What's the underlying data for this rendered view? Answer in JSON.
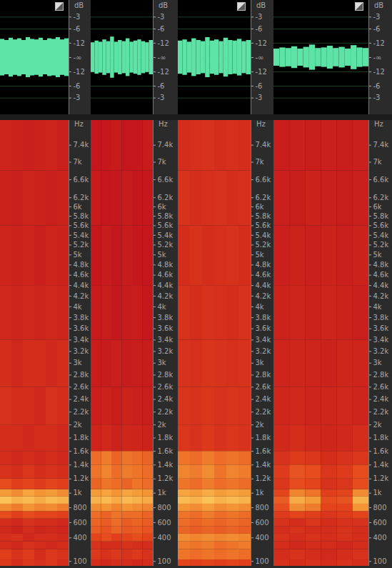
{
  "chart_data": {
    "type": "spectrogram",
    "tick_labels": "y",
    "zlim": [
      0,
      1
    ],
    "waveform_axis": {
      "ylabel": "dB",
      "ylim": [
        -1,
        1
      ],
      "grid": true,
      "color": "#5de3a6",
      "yticks": [
        {
          "value": 0.708,
          "label": "-3"
        },
        {
          "value": 0.5,
          "label": "-6"
        },
        {
          "value": 0.251,
          "label": "-12"
        },
        {
          "value": 0,
          "label": "-∞"
        },
        {
          "value": -0.251,
          "label": "-12"
        },
        {
          "value": -0.5,
          "label": "-6"
        },
        {
          "value": -0.708,
          "label": "-3"
        }
      ]
    },
    "frequency_axis": {
      "ylabel": "Hz",
      "ylim": [
        40,
        8000
      ],
      "yticks": [
        100,
        400,
        600,
        800,
        {
          "value": 1000,
          "label": "1k"
        },
        {
          "value": 1200,
          "label": "1.2k"
        },
        {
          "value": 1400,
          "label": "1.4k"
        },
        {
          "value": 1600,
          "label": "1.6k"
        },
        {
          "value": 1800,
          "label": "1.8k"
        },
        {
          "value": 2000,
          "label": "2k"
        },
        {
          "value": 2200,
          "label": "2.2k"
        },
        {
          "value": 2400,
          "label": "2.4k"
        },
        {
          "value": 2600,
          "label": "2.6k"
        },
        {
          "value": 2800,
          "label": "2.8k"
        },
        {
          "value": 3000,
          "label": "3k"
        },
        {
          "value": 3200,
          "label": "3.2k"
        },
        {
          "value": 3400,
          "label": "3.4k"
        },
        {
          "value": 3600,
          "label": "3.6k"
        },
        {
          "value": 3800,
          "label": "3.8k"
        },
        {
          "value": 4000,
          "label": "4k"
        },
        {
          "value": 4200,
          "label": "4.2k"
        },
        {
          "value": 4400,
          "label": "4.4k"
        },
        {
          "value": 4600,
          "label": "4.6k"
        },
        {
          "value": 4800,
          "label": "4.8k"
        },
        {
          "value": 5000,
          "label": "5k"
        },
        {
          "value": 5200,
          "label": "5.2k"
        },
        {
          "value": 5400,
          "label": "5.4k"
        },
        {
          "value": 5600,
          "label": "5.6k"
        },
        {
          "value": 5800,
          "label": "5.8k"
        },
        {
          "value": 6000,
          "label": "6k"
        },
        {
          "value": 6200,
          "label": "6.2k"
        },
        {
          "value": 6600,
          "label": "6.6k"
        },
        {
          "value": 7000,
          "label": "7k"
        },
        {
          "value": 7400,
          "label": "7.4k"
        }
      ]
    },
    "freq_bins": [
      40,
      120,
      250,
      350,
      450,
      550,
      650,
      750,
      850,
      950,
      1050,
      1200,
      1400,
      1600,
      2000,
      2600,
      3400,
      4400,
      5600,
      6800,
      8000
    ],
    "panels": [
      {
        "waveform": [
          0.32,
          0.3,
          0.34,
          0.31,
          0.33,
          0.3,
          0.35,
          0.32,
          0.31,
          0.34,
          0.3,
          0.33,
          0.32,
          0.35,
          0.31,
          0.33
        ],
        "cells": [
          [
            0.55,
            0.5,
            0.55,
            0.52,
            0.55,
            0.5
          ],
          [
            0.58,
            0.52,
            0.56,
            0.5,
            0.55,
            0.52
          ],
          [
            0.5,
            0.48,
            0.52,
            0.5,
            0.48,
            0.5
          ],
          [
            0.5,
            0.52,
            0.48,
            0.5,
            0.5,
            0.48
          ],
          [
            0.48,
            0.45,
            0.5,
            0.47,
            0.48,
            0.46
          ],
          [
            0.5,
            0.48,
            0.52,
            0.5,
            0.5,
            0.48
          ],
          [
            0.62,
            0.58,
            0.62,
            0.6,
            0.6,
            0.58
          ],
          [
            0.78,
            0.74,
            0.8,
            0.76,
            0.78,
            0.74
          ],
          [
            0.92,
            0.88,
            0.9,
            0.86,
            0.9,
            0.88
          ],
          [
            0.82,
            0.78,
            0.84,
            0.8,
            0.82,
            0.78
          ],
          [
            0.62,
            0.58,
            0.6,
            0.56,
            0.6,
            0.58
          ],
          [
            0.52,
            0.5,
            0.54,
            0.5,
            0.52,
            0.5
          ],
          [
            0.5,
            0.48,
            0.5,
            0.48,
            0.5,
            0.48
          ],
          [
            0.5,
            0.5,
            0.48,
            0.5,
            0.5,
            0.48
          ],
          [
            0.52,
            0.5,
            0.5,
            0.48,
            0.52,
            0.5
          ],
          [
            0.5,
            0.48,
            0.5,
            0.5,
            0.48,
            0.5
          ],
          [
            0.48,
            0.46,
            0.48,
            0.46,
            0.48,
            0.46
          ],
          [
            0.46,
            0.45,
            0.46,
            0.44,
            0.46,
            0.45
          ],
          [
            0.45,
            0.44,
            0.46,
            0.45,
            0.44,
            0.45
          ],
          [
            0.46,
            0.45,
            0.44,
            0.45,
            0.46,
            0.44
          ]
        ]
      },
      {
        "waveform": [
          0.26,
          0.29,
          0.27,
          0.31,
          0.28,
          0.36,
          0.27,
          0.3,
          0.28,
          0.33,
          0.27,
          0.29,
          0.31,
          0.28,
          0.26,
          0.3
        ],
        "cells": [
          [
            0.5,
            0.48,
            0.5,
            0.5,
            0.48,
            0.5
          ],
          [
            0.55,
            0.52,
            0.55,
            0.52,
            0.55,
            0.52
          ],
          [
            0.52,
            0.5,
            0.5,
            0.52,
            0.5,
            0.5
          ],
          [
            0.6,
            0.62,
            0.58,
            0.6,
            0.62,
            0.6
          ],
          [
            0.66,
            0.64,
            0.68,
            0.65,
            0.66,
            0.64
          ],
          [
            0.68,
            0.66,
            0.7,
            0.66,
            0.68,
            0.66
          ],
          [
            0.7,
            0.68,
            0.72,
            0.7,
            0.7,
            0.68
          ],
          [
            0.78,
            0.8,
            0.76,
            0.8,
            0.78,
            0.76
          ],
          [
            0.88,
            0.9,
            0.86,
            0.9,
            0.88,
            0.86
          ],
          [
            0.82,
            0.84,
            0.8,
            0.84,
            0.82,
            0.8
          ],
          [
            0.68,
            0.72,
            0.7,
            0.68,
            0.72,
            0.7
          ],
          [
            0.72,
            0.76,
            0.7,
            0.74,
            0.72,
            0.7
          ],
          [
            0.7,
            0.74,
            0.68,
            0.72,
            0.7,
            0.68
          ],
          [
            0.46,
            0.48,
            0.45,
            0.47,
            0.46,
            0.45
          ],
          [
            0.44,
            0.45,
            0.43,
            0.45,
            0.44,
            0.43
          ],
          [
            0.43,
            0.42,
            0.44,
            0.42,
            0.43,
            0.42
          ],
          [
            0.42,
            0.43,
            0.41,
            0.42,
            0.43,
            0.41
          ],
          [
            0.41,
            0.42,
            0.4,
            0.42,
            0.41,
            0.4
          ],
          [
            0.42,
            0.4,
            0.41,
            0.42,
            0.4,
            0.41
          ],
          [
            0.4,
            0.41,
            0.42,
            0.4,
            0.41,
            0.42
          ]
        ]
      },
      {
        "waveform": [
          0.29,
          0.31,
          0.27,
          0.33,
          0.3,
          0.28,
          0.35,
          0.29,
          0.31,
          0.28,
          0.34,
          0.3,
          0.29,
          0.32,
          0.28,
          0.3
        ],
        "cells": [
          [
            0.6,
            0.58,
            0.6,
            0.58,
            0.6,
            0.58
          ],
          [
            0.72,
            0.7,
            0.72,
            0.7,
            0.72,
            0.7
          ],
          [
            0.74,
            0.72,
            0.74,
            0.7,
            0.72,
            0.74
          ],
          [
            0.78,
            0.76,
            0.78,
            0.76,
            0.78,
            0.76
          ],
          [
            0.68,
            0.66,
            0.68,
            0.66,
            0.68,
            0.66
          ],
          [
            0.7,
            0.68,
            0.7,
            0.68,
            0.7,
            0.68
          ],
          [
            0.72,
            0.7,
            0.74,
            0.7,
            0.72,
            0.7
          ],
          [
            0.8,
            0.78,
            0.82,
            0.78,
            0.8,
            0.78
          ],
          [
            0.9,
            0.88,
            0.92,
            0.88,
            0.9,
            0.88
          ],
          [
            0.84,
            0.82,
            0.86,
            0.82,
            0.84,
            0.82
          ],
          [
            0.72,
            0.7,
            0.74,
            0.7,
            0.72,
            0.7
          ],
          [
            0.76,
            0.74,
            0.78,
            0.72,
            0.76,
            0.74
          ],
          [
            0.72,
            0.7,
            0.74,
            0.7,
            0.72,
            0.7
          ],
          [
            0.54,
            0.52,
            0.55,
            0.52,
            0.54,
            0.52
          ],
          [
            0.53,
            0.52,
            0.54,
            0.52,
            0.53,
            0.52
          ],
          [
            0.52,
            0.51,
            0.53,
            0.52,
            0.51,
            0.52
          ],
          [
            0.52,
            0.5,
            0.52,
            0.51,
            0.5,
            0.52
          ],
          [
            0.5,
            0.52,
            0.5,
            0.51,
            0.52,
            0.5
          ],
          [
            0.52,
            0.5,
            0.51,
            0.52,
            0.5,
            0.51
          ],
          [
            0.5,
            0.51,
            0.52,
            0.5,
            0.51,
            0.5
          ]
        ]
      },
      {
        "waveform": [
          0.15,
          0.17,
          0.16,
          0.19,
          0.15,
          0.18,
          0.22,
          0.16,
          0.17,
          0.2,
          0.16,
          0.18,
          0.15,
          0.21,
          0.17,
          0.16
        ],
        "cells": [
          [
            0.52,
            0.5,
            0.52,
            0.5,
            0.52,
            0.5
          ],
          [
            0.5,
            0.52,
            0.5,
            0.48,
            0.5,
            0.52
          ],
          [
            0.5,
            0.48,
            0.5,
            0.5,
            0.48,
            0.5
          ],
          [
            0.52,
            0.5,
            0.52,
            0.5,
            0.52,
            0.5
          ],
          [
            0.5,
            0.52,
            0.5,
            0.5,
            0.52,
            0.5
          ],
          [
            0.52,
            0.5,
            0.54,
            0.5,
            0.52,
            0.52
          ],
          [
            0.56,
            0.6,
            0.58,
            0.54,
            0.56,
            0.6
          ],
          [
            0.62,
            0.78,
            0.74,
            0.6,
            0.6,
            0.8
          ],
          [
            0.66,
            0.86,
            0.82,
            0.62,
            0.64,
            0.88
          ],
          [
            0.6,
            0.76,
            0.72,
            0.58,
            0.6,
            0.78
          ],
          [
            0.54,
            0.62,
            0.6,
            0.52,
            0.54,
            0.62
          ],
          [
            0.56,
            0.64,
            0.62,
            0.54,
            0.56,
            0.62
          ],
          [
            0.52,
            0.56,
            0.54,
            0.5,
            0.52,
            0.54
          ],
          [
            0.48,
            0.5,
            0.48,
            0.47,
            0.48,
            0.5
          ],
          [
            0.47,
            0.48,
            0.46,
            0.47,
            0.48,
            0.46
          ],
          [
            0.46,
            0.47,
            0.46,
            0.45,
            0.47,
            0.46
          ],
          [
            0.45,
            0.46,
            0.45,
            0.46,
            0.45,
            0.44
          ],
          [
            0.44,
            0.45,
            0.44,
            0.45,
            0.44,
            0.45
          ],
          [
            0.44,
            0.43,
            0.45,
            0.44,
            0.43,
            0.44
          ],
          [
            0.43,
            0.44,
            0.43,
            0.44,
            0.43,
            0.44
          ]
        ]
      }
    ]
  }
}
